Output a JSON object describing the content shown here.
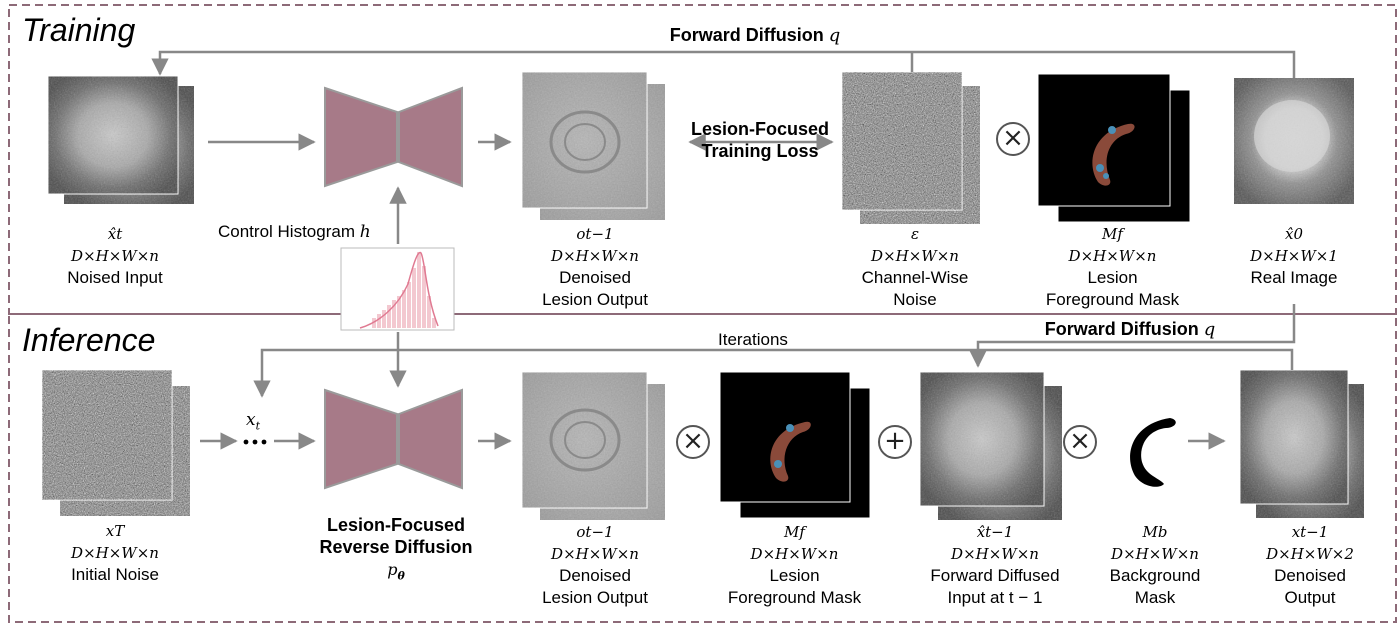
{
  "sections": {
    "training": "Training",
    "inference": "Inference"
  },
  "labels": {
    "forward_diffusion": "Forward Diffusion",
    "forward_diffusion_q": "q",
    "lesion_focused_loss_line1": "Lesion-Focused",
    "lesion_focused_loss_line2": "Training Loss",
    "control_histogram": "Control Histogram",
    "control_histogram_h": "h",
    "iterations": "Iterations",
    "xt_dots_symbol": "x",
    "xt_dots_sub": "t",
    "reverse_diffusion_line1": "Lesion-Focused",
    "reverse_diffusion_line2": "Reverse Diffusion",
    "reverse_diffusion_symbol": "p",
    "reverse_diffusion_sub": "θ"
  },
  "training": {
    "noised_input": {
      "symbol": "x̂t",
      "dims": "D×H×W×n",
      "name": "Noised Input"
    },
    "denoised_output": {
      "symbol": "ot−1",
      "dims": "D×H×W×n",
      "name_line1": "Denoised",
      "name_line2": "Lesion Output"
    },
    "noise": {
      "symbol": "ε",
      "dims": "D×H×W×n",
      "name_line1": "Channel-Wise",
      "name_line2": "Noise"
    },
    "mask": {
      "symbol": "Mf",
      "dims": "D×H×W×n",
      "name_line1": "Lesion",
      "name_line2": "Foreground Mask"
    },
    "real_image": {
      "symbol": "x̂0",
      "dims": "D×H×W×1",
      "name": "Real Image"
    }
  },
  "inference": {
    "initial_noise": {
      "symbol": "xT",
      "dims": "D×H×W×n",
      "name": "Initial Noise"
    },
    "denoised_output": {
      "symbol": "ot−1",
      "dims": "D×H×W×n",
      "name_line1": "Denoised",
      "name_line2": "Lesion Output"
    },
    "mask": {
      "symbol": "Mf",
      "dims": "D×H×W×n",
      "name_line1": "Lesion",
      "name_line2": "Foreground Mask"
    },
    "forward_diffused": {
      "symbol": "x̂t−1",
      "dims": "D×H×W×n",
      "name_line1": "Forward Diffused",
      "name_line2": "Input at t − 1"
    },
    "background_mask": {
      "symbol": "Mb",
      "dims": "D×H×W×n",
      "name_line1": "Background",
      "name_line2": "Mask"
    },
    "final_output": {
      "symbol": "xt−1",
      "dims": "D×H×W×2",
      "name_line1": "Denoised",
      "name_line2": "Output"
    }
  },
  "colors": {
    "unet": "#a77a88",
    "frame": "#8d6a78",
    "arrow": "#888888",
    "lesion": "#8a4a3a",
    "lesion_spot": "#4a90b8"
  }
}
